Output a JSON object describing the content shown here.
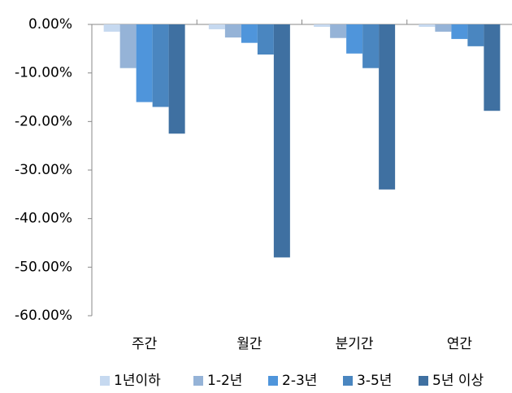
{
  "chart_data": {
    "type": "bar",
    "categories": [
      "주간",
      "월간",
      "분기간",
      "연간"
    ],
    "series": [
      {
        "name": "1년이하",
        "color": "#c6d9f0",
        "values": [
          -1.5,
          -1,
          -0.5,
          -0.5
        ]
      },
      {
        "name": "1-2년",
        "color": "#95b3d7",
        "values": [
          -9,
          -2.7,
          -2.8,
          -1.5
        ]
      },
      {
        "name": "2-3년",
        "color": "#4f95db",
        "values": [
          -16,
          -3.8,
          -6,
          -3
        ]
      },
      {
        "name": "3-5년",
        "color": "#4a86c0",
        "values": [
          -17,
          -6.2,
          -9,
          -4.5
        ]
      },
      {
        "name": "5년 이상",
        "color": "#3f70a1",
        "values": [
          -22.5,
          -48,
          -34,
          -17.8
        ]
      }
    ],
    "ylim": [
      -60,
      0
    ],
    "yticks": [
      {
        "value": 0,
        "label": "0.00%"
      },
      {
        "value": -10,
        "label": "-10.00%"
      },
      {
        "value": -20,
        "label": "-20.00%"
      },
      {
        "value": -30,
        "label": "-30.00%"
      },
      {
        "value": -40,
        "label": "-40.00%"
      },
      {
        "value": -50,
        "label": "-50.00%"
      },
      {
        "value": -60,
        "label": "-60.00%"
      }
    ],
    "legend": "bottom"
  }
}
